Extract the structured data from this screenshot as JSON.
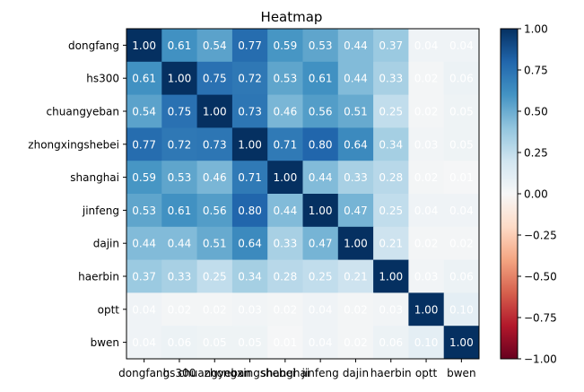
{
  "chart_data": {
    "type": "heatmap",
    "title": "Heatmap",
    "x_categories": [
      "dongfang",
      "hs300",
      "chuangyeban",
      "zhongxingshebei",
      "shanghai",
      "jinfeng",
      "dajin",
      "haerbin",
      "optt",
      "bwen"
    ],
    "y_categories": [
      "dongfang",
      "hs300",
      "chuangyeban",
      "zhongxingshebei",
      "shanghai",
      "jinfeng",
      "dajin",
      "haerbin",
      "optt",
      "bwen"
    ],
    "values": [
      [
        1.0,
        0.61,
        0.54,
        0.77,
        0.59,
        0.53,
        0.44,
        0.37,
        0.04,
        0.04
      ],
      [
        0.61,
        1.0,
        0.75,
        0.72,
        0.53,
        0.61,
        0.44,
        0.33,
        0.02,
        0.06
      ],
      [
        0.54,
        0.75,
        1.0,
        0.73,
        0.46,
        0.56,
        0.51,
        0.25,
        0.02,
        0.05
      ],
      [
        0.77,
        0.72,
        0.73,
        1.0,
        0.71,
        0.8,
        0.64,
        0.34,
        0.03,
        0.05
      ],
      [
        0.59,
        0.53,
        0.46,
        0.71,
        1.0,
        0.44,
        0.33,
        0.28,
        0.02,
        0.01
      ],
      [
        0.53,
        0.61,
        0.56,
        0.8,
        0.44,
        1.0,
        0.47,
        0.25,
        0.04,
        0.04
      ],
      [
        0.44,
        0.44,
        0.51,
        0.64,
        0.33,
        0.47,
        1.0,
        0.21,
        0.02,
        0.02
      ],
      [
        0.37,
        0.33,
        0.25,
        0.34,
        0.28,
        0.25,
        0.21,
        1.0,
        0.03,
        0.06
      ],
      [
        0.04,
        0.02,
        0.02,
        0.03,
        0.02,
        0.04,
        0.02,
        0.03,
        1.0,
        0.1
      ],
      [
        0.04,
        0.06,
        0.05,
        0.05,
        0.01,
        0.04,
        0.02,
        0.06,
        0.1,
        1.0
      ]
    ],
    "value_format": "0.00",
    "colormap": "RdBu",
    "vmin": -1.0,
    "vmax": 1.0,
    "colorbar": {
      "ticks": [
        "1.00",
        "0.75",
        "0.50",
        "0.25",
        "0.00",
        "−0.25",
        "−0.50",
        "−0.75",
        "−1.00"
      ],
      "tick_values": [
        1.0,
        0.75,
        0.5,
        0.25,
        0.0,
        -0.25,
        -0.5,
        -0.75,
        -1.0
      ],
      "placement": "right"
    },
    "grid": false
  }
}
